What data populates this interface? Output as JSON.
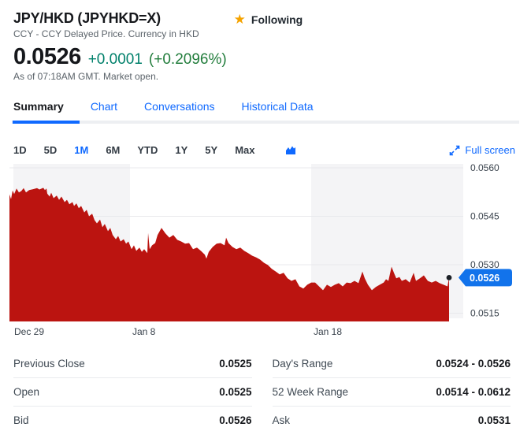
{
  "theme": {
    "accent_blue": "#0f69ff",
    "star_gold": "#f5a300",
    "positive_change": "#00806b",
    "positive_percent": "#227d3c"
  },
  "header": {
    "title": "JPY/HKD (JPYHKD=X)",
    "subtitle": "CCY - CCY Delayed Price. Currency in HKD",
    "follow_label": "Following"
  },
  "quote": {
    "price": "0.0526",
    "change": "+0.0001",
    "change_pct": "(+0.2096%)",
    "as_of": "As of 07:18AM GMT. Market open."
  },
  "tabs": [
    {
      "label": "Summary",
      "active": true
    },
    {
      "label": "Chart",
      "active": false
    },
    {
      "label": "Conversations",
      "active": false
    },
    {
      "label": "Historical Data",
      "active": false
    }
  ],
  "range_selector": {
    "options": [
      "1D",
      "5D",
      "1M",
      "6M",
      "YTD",
      "1Y",
      "5Y",
      "Max"
    ],
    "selected": "1M",
    "fullscreen_label": "Full screen"
  },
  "chart_data": {
    "type": "area",
    "symbol": "JPYHKD=X",
    "range": "1M",
    "color": "#bb1410",
    "band_color": "#f4f4f6",
    "gridline_color": "#e8e9ec",
    "axis_label_color": "#39424c",
    "dot_color": "#1c2026",
    "badge_color": "#1273eb",
    "current_value": 0.0526,
    "current_value_label": "0.0526",
    "y_axis": {
      "min": 0.0515,
      "max": 0.056,
      "ticks": [
        {
          "value": 0.056,
          "label": "0.0560"
        },
        {
          "value": 0.0545,
          "label": "0.0545"
        },
        {
          "value": 0.053,
          "label": "0.0530"
        },
        {
          "value": 0.0515,
          "label": "0.0515"
        }
      ]
    },
    "x_axis": {
      "unit": "px_from_plot_left",
      "ticks": [
        {
          "label": "Dec 29",
          "x": 6
        },
        {
          "label": "Jan 8",
          "x": 156
        },
        {
          "label": "Jan 18",
          "x": 386
        }
      ]
    },
    "background_bands": [
      {
        "x": 5,
        "width": 148
      },
      {
        "x": 383,
        "width": 193
      }
    ],
    "series": [
      {
        "name": "JPYHKD=X",
        "points": [
          [
            0,
            0.05518
          ],
          [
            2,
            0.05503
          ],
          [
            4,
            0.0553
          ],
          [
            6,
            0.05519
          ],
          [
            9,
            0.05536
          ],
          [
            12,
            0.05524
          ],
          [
            15,
            0.05528
          ],
          [
            18,
            0.05537
          ],
          [
            21,
            0.05524
          ],
          [
            25,
            0.05531
          ],
          [
            30,
            0.05534
          ],
          [
            35,
            0.05537
          ],
          [
            38,
            0.05533
          ],
          [
            43,
            0.05538
          ],
          [
            45,
            0.05531
          ],
          [
            47,
            0.05536
          ],
          [
            48,
            0.0552
          ],
          [
            51,
            0.05511
          ],
          [
            53,
            0.05523
          ],
          [
            56,
            0.05506
          ],
          [
            60,
            0.05514
          ],
          [
            63,
            0.05501
          ],
          [
            66,
            0.05511
          ],
          [
            70,
            0.05494
          ],
          [
            73,
            0.05501
          ],
          [
            76,
            0.05487
          ],
          [
            80,
            0.05494
          ],
          [
            82,
            0.05482
          ],
          [
            85,
            0.0549
          ],
          [
            88,
            0.05475
          ],
          [
            91,
            0.05482
          ],
          [
            95,
            0.05462
          ],
          [
            98,
            0.0547
          ],
          [
            101,
            0.0545
          ],
          [
            105,
            0.05458
          ],
          [
            108,
            0.05438
          ],
          [
            111,
            0.05428
          ],
          [
            115,
            0.0544
          ],
          [
            118,
            0.05416
          ],
          [
            121,
            0.05426
          ],
          [
            125,
            0.05404
          ],
          [
            128,
            0.05414
          ],
          [
            131,
            0.05392
          ],
          [
            135,
            0.05379
          ],
          [
            138,
            0.05389
          ],
          [
            141,
            0.05372
          ],
          [
            145,
            0.05379
          ],
          [
            148,
            0.05365
          ],
          [
            151,
            0.05372
          ],
          [
            155,
            0.05348
          ],
          [
            158,
            0.0536
          ],
          [
            161,
            0.05343
          ],
          [
            165,
            0.05353
          ],
          [
            168,
            0.0534
          ],
          [
            171,
            0.05348
          ],
          [
            175,
            0.05336
          ],
          [
            176,
            0.05398
          ],
          [
            178,
            0.05348
          ],
          [
            181,
            0.0536
          ],
          [
            185,
            0.05367
          ],
          [
            188,
            0.05392
          ],
          [
            193,
            0.05414
          ],
          [
            198,
            0.05397
          ],
          [
            203,
            0.05384
          ],
          [
            208,
            0.05392
          ],
          [
            213,
            0.05377
          ],
          [
            218,
            0.05372
          ],
          [
            223,
            0.05365
          ],
          [
            228,
            0.05367
          ],
          [
            233,
            0.05348
          ],
          [
            238,
            0.05353
          ],
          [
            243,
            0.05343
          ],
          [
            248,
            0.05331
          ],
          [
            250,
            0.05319
          ],
          [
            253,
            0.0534
          ],
          [
            258,
            0.05355
          ],
          [
            263,
            0.05365
          ],
          [
            268,
            0.05367
          ],
          [
            273,
            0.0536
          ],
          [
            275,
            0.05384
          ],
          [
            278,
            0.05367
          ],
          [
            283,
            0.05355
          ],
          [
            288,
            0.05348
          ],
          [
            293,
            0.05353
          ],
          [
            298,
            0.05343
          ],
          [
            303,
            0.05336
          ],
          [
            308,
            0.05328
          ],
          [
            313,
            0.05323
          ],
          [
            318,
            0.05316
          ],
          [
            323,
            0.05306
          ],
          [
            328,
            0.05299
          ],
          [
            333,
            0.05287
          ],
          [
            338,
            0.05279
          ],
          [
            343,
            0.0527
          ],
          [
            348,
            0.05275
          ],
          [
            353,
            0.05258
          ],
          [
            358,
            0.0525
          ],
          [
            363,
            0.05255
          ],
          [
            368,
            0.05233
          ],
          [
            373,
            0.05226
          ],
          [
            378,
            0.05238
          ],
          [
            383,
            0.05245
          ],
          [
            388,
            0.05245
          ],
          [
            393,
            0.05233
          ],
          [
            398,
            0.05221
          ],
          [
            403,
            0.05238
          ],
          [
            408,
            0.05231
          ],
          [
            413,
            0.05238
          ],
          [
            418,
            0.05243
          ],
          [
            423,
            0.05233
          ],
          [
            428,
            0.05245
          ],
          [
            433,
            0.05243
          ],
          [
            438,
            0.0525
          ],
          [
            443,
            0.05243
          ],
          [
            448,
            0.05279
          ],
          [
            451,
            0.05258
          ],
          [
            455,
            0.05238
          ],
          [
            460,
            0.05221
          ],
          [
            465,
            0.05231
          ],
          [
            470,
            0.05238
          ],
          [
            475,
            0.05245
          ],
          [
            478,
            0.05255
          ],
          [
            481,
            0.0525
          ],
          [
            485,
            0.05294
          ],
          [
            488,
            0.05275
          ],
          [
            491,
            0.05258
          ],
          [
            495,
            0.05262
          ],
          [
            498,
            0.0525
          ],
          [
            503,
            0.05255
          ],
          [
            508,
            0.05245
          ],
          [
            513,
            0.05275
          ],
          [
            516,
            0.0525
          ],
          [
            521,
            0.05258
          ],
          [
            526,
            0.05267
          ],
          [
            531,
            0.0525
          ],
          [
            536,
            0.05245
          ],
          [
            541,
            0.0525
          ],
          [
            546,
            0.05243
          ],
          [
            551,
            0.05238
          ],
          [
            556,
            0.05233
          ],
          [
            558,
            0.0526
          ]
        ]
      }
    ]
  },
  "stats": {
    "left": [
      {
        "label": "Previous Close",
        "value": "0.0525"
      },
      {
        "label": "Open",
        "value": "0.0525"
      },
      {
        "label": "Bid",
        "value": "0.0526"
      }
    ],
    "right": [
      {
        "label": "Day's Range",
        "value": "0.0524 - 0.0526"
      },
      {
        "label": "52 Week Range",
        "value": "0.0514 - 0.0612"
      },
      {
        "label": "Ask",
        "value": "0.0531"
      }
    ]
  }
}
